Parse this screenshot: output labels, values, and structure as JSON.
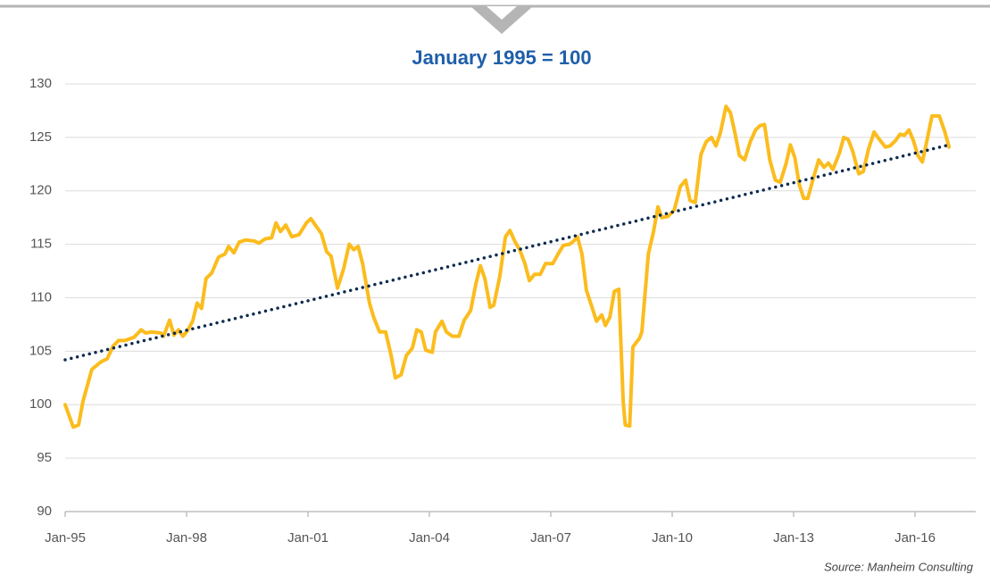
{
  "chart_data": {
    "type": "line",
    "title": "January 1995 = 100",
    "source": "Source: Manheim Consulting",
    "xlim": [
      1995,
      2017.5
    ],
    "xticks": [
      {
        "value": 1995,
        "label": "Jan-95"
      },
      {
        "value": 1998,
        "label": "Jan-98"
      },
      {
        "value": 2001,
        "label": "Jan-01"
      },
      {
        "value": 2004,
        "label": "Jan-04"
      },
      {
        "value": 2007,
        "label": "Jan-07"
      },
      {
        "value": 2010,
        "label": "Jan-10"
      },
      {
        "value": 2013,
        "label": "Jan-13"
      },
      {
        "value": 2016,
        "label": "Jan-16"
      }
    ],
    "ylim": [
      90,
      130
    ],
    "yticks": [
      90,
      95,
      100,
      105,
      110,
      115,
      120,
      125,
      130
    ],
    "grid": true,
    "series": [
      {
        "color": "#fbbc1d",
        "style": "solid",
        "x": [
          1995.0,
          1995.2,
          1995.33,
          1995.44,
          1995.66,
          1995.88,
          1996.04,
          1996.19,
          1996.32,
          1996.48,
          1996.7,
          1996.88,
          1996.99,
          1997.14,
          1997.36,
          1997.43,
          1997.58,
          1997.69,
          1997.8,
          1997.91,
          1998.02,
          1998.15,
          1998.26,
          1998.37,
          1998.48,
          1998.62,
          1998.79,
          1998.95,
          1999.04,
          1999.17,
          1999.3,
          1999.46,
          1999.68,
          1999.79,
          1999.94,
          2000.1,
          2000.21,
          2000.32,
          2000.45,
          2000.6,
          2000.78,
          2000.96,
          2001.07,
          2001.2,
          2001.33,
          2001.46,
          2001.57,
          2001.73,
          2001.88,
          2002.02,
          2002.13,
          2002.24,
          2002.35,
          2002.52,
          2002.63,
          2002.77,
          2002.92,
          2003.05,
          2003.16,
          2003.3,
          2003.43,
          2003.58,
          2003.69,
          2003.8,
          2003.91,
          2004.07,
          2004.15,
          2004.31,
          2004.42,
          2004.57,
          2004.73,
          2004.86,
          2005.02,
          2005.15,
          2005.26,
          2005.37,
          2005.5,
          2005.59,
          2005.74,
          2005.88,
          2005.99,
          2006.12,
          2006.23,
          2006.36,
          2006.47,
          2006.6,
          2006.74,
          2006.87,
          2007.05,
          2007.18,
          2007.31,
          2007.46,
          2007.57,
          2007.66,
          2007.77,
          2007.88,
          2008.02,
          2008.13,
          2008.26,
          2008.35,
          2008.46,
          2008.57,
          2008.68,
          2008.79,
          2008.84,
          2008.95,
          2009.03,
          2009.19,
          2009.25,
          2009.41,
          2009.54,
          2009.65,
          2009.74,
          2009.89,
          2010.05,
          2010.2,
          2010.33,
          2010.44,
          2010.57,
          2010.71,
          2010.84,
          2010.97,
          2011.08,
          2011.19,
          2011.33,
          2011.44,
          2011.55,
          2011.66,
          2011.79,
          2011.93,
          2012.06,
          2012.17,
          2012.28,
          2012.41,
          2012.55,
          2012.67,
          2012.81,
          2012.92,
          2013.03,
          2013.14,
          2013.25,
          2013.35,
          2013.49,
          2013.62,
          2013.75,
          2013.86,
          2013.97,
          2014.13,
          2014.24,
          2014.35,
          2014.46,
          2014.61,
          2014.72,
          2014.85,
          2014.99,
          2015.12,
          2015.27,
          2015.38,
          2015.52,
          2015.63,
          2015.74,
          2015.85,
          2015.96,
          2016.07,
          2016.18,
          2016.29,
          2016.42,
          2016.6,
          2016.73,
          2016.84
        ],
        "values": [
          100.0,
          97.9,
          98.1,
          100.3,
          103.3,
          104.0,
          104.3,
          105.5,
          106.0,
          106.0,
          106.3,
          107.0,
          106.7,
          106.8,
          106.7,
          106.4,
          107.9,
          106.5,
          107.0,
          106.4,
          106.9,
          107.8,
          109.5,
          109.0,
          111.8,
          112.3,
          113.8,
          114.1,
          114.8,
          114.2,
          115.2,
          115.4,
          115.3,
          115.1,
          115.5,
          115.6,
          117.0,
          116.2,
          116.8,
          115.7,
          115.9,
          117.0,
          117.4,
          116.7,
          116.0,
          114.3,
          113.9,
          110.9,
          112.7,
          115.0,
          114.5,
          114.8,
          113.2,
          109.5,
          108.1,
          106.8,
          106.8,
          104.7,
          102.5,
          102.8,
          104.6,
          105.3,
          107.0,
          106.8,
          105.1,
          104.9,
          106.8,
          107.8,
          106.8,
          106.4,
          106.4,
          107.9,
          108.8,
          111.3,
          113.0,
          111.8,
          109.1,
          109.3,
          112.0,
          115.7,
          116.3,
          115.2,
          114.5,
          113.2,
          111.6,
          112.2,
          112.2,
          113.2,
          113.2,
          114.1,
          114.9,
          115.0,
          115.3,
          115.7,
          114.1,
          110.7,
          109.1,
          107.8,
          108.4,
          107.4,
          108.2,
          110.6,
          110.8,
          100.3,
          98.1,
          98.0,
          105.4,
          106.2,
          106.8,
          114.1,
          116.2,
          118.5,
          117.5,
          117.6,
          118.2,
          120.4,
          121.0,
          119.1,
          118.9,
          123.4,
          124.6,
          125.0,
          124.2,
          125.4,
          127.9,
          127.3,
          125.4,
          123.3,
          122.9,
          124.6,
          125.7,
          126.1,
          126.2,
          122.9,
          121.0,
          120.8,
          122.5,
          124.3,
          123.1,
          120.6,
          119.3,
          119.3,
          121.2,
          122.9,
          122.2,
          122.6,
          122.0,
          123.5,
          125.0,
          124.8,
          123.7,
          121.6,
          121.8,
          123.9,
          125.5,
          124.8,
          124.1,
          124.2,
          124.7,
          125.3,
          125.2,
          125.7,
          124.7,
          123.3,
          122.7,
          124.6,
          127.0,
          127.0,
          125.6,
          124.1
        ]
      },
      {
        "color": "#0d2b4e",
        "style": "dotted",
        "x": [
          1995.0,
          2016.84
        ],
        "values": [
          104.2,
          124.3
        ]
      }
    ]
  }
}
